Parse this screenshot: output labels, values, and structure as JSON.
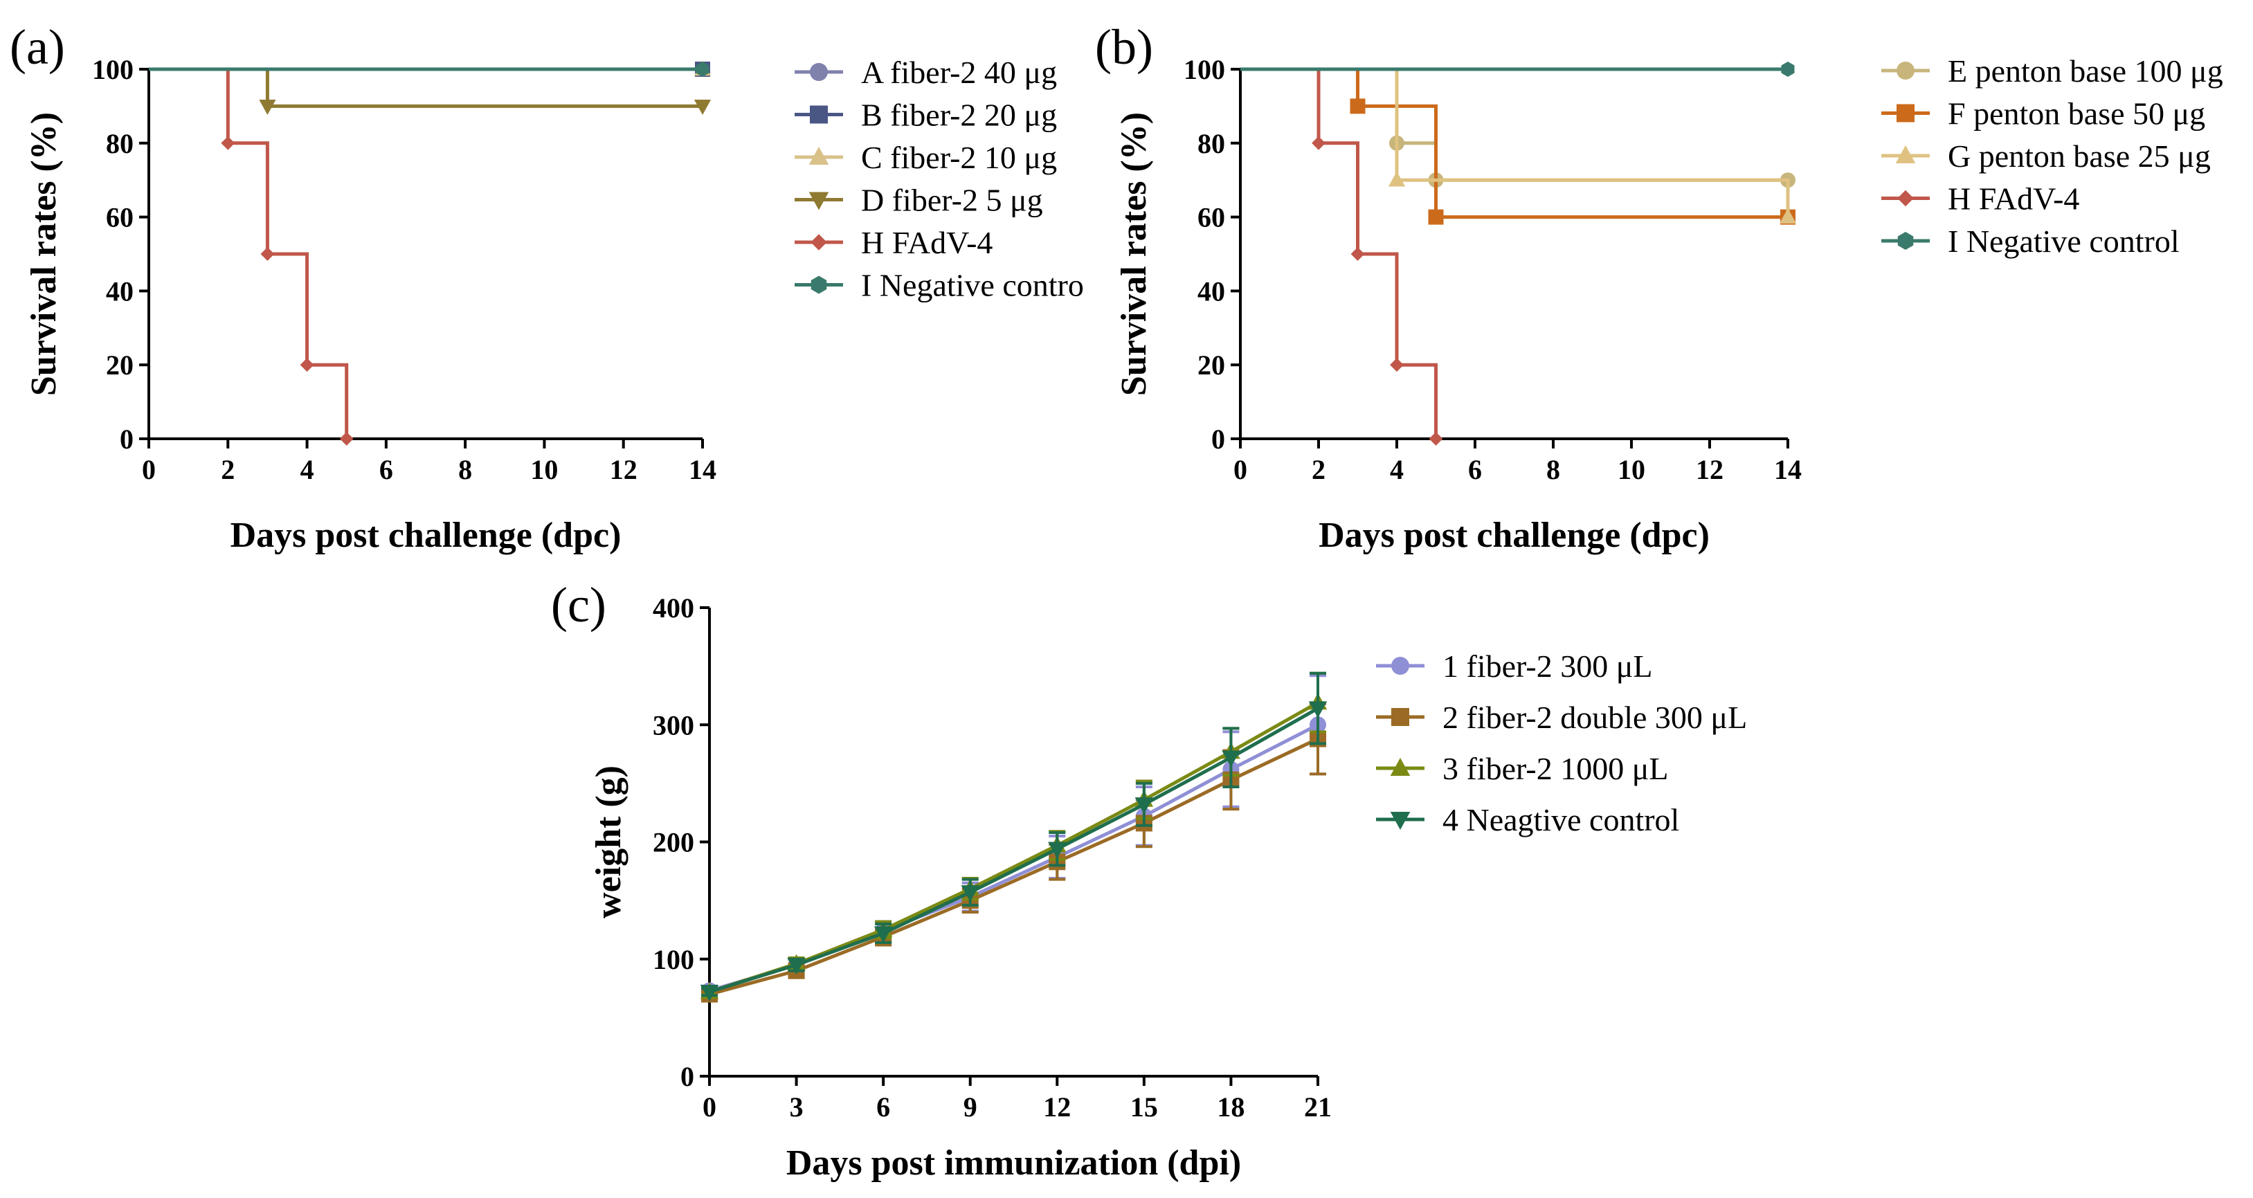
{
  "chart_data": [
    {
      "id": "a",
      "type": "line",
      "step": true,
      "panel_label": "(a)",
      "xlabel": "Days post challenge (dpc)",
      "ylabel": "Survival rates (%)",
      "xlim": [
        0,
        14
      ],
      "ylim": [
        0,
        100
      ],
      "xticks": [
        "0",
        "2",
        "4",
        "6",
        "8",
        "10",
        "12",
        "14"
      ],
      "yticks": [
        "0",
        "20",
        "40",
        "60",
        "80",
        "100"
      ],
      "legend_position": "right",
      "series": [
        {
          "name": "A fiber-2 40 μg",
          "color": "#7f82ac",
          "marker": "circle",
          "x": [
            0,
            14
          ],
          "values": [
            100,
            100
          ]
        },
        {
          "name": "B fiber-2 20 μg",
          "color": "#4a5684",
          "marker": "square",
          "x": [
            0,
            14
          ],
          "values": [
            100,
            100
          ]
        },
        {
          "name": "C fiber-2 10 μg",
          "color": "#d9c189",
          "marker": "triangle-up",
          "x": [
            0,
            14
          ],
          "values": [
            100,
            100
          ]
        },
        {
          "name": "D fiber-2 5 μg",
          "color": "#8f7a32",
          "marker": "triangle-down",
          "x": [
            0,
            3,
            14
          ],
          "values": [
            100,
            90,
            90
          ]
        },
        {
          "name": "H FAdV-4",
          "color": "#c0574a",
          "marker": "diamond",
          "x": [
            0,
            2,
            3,
            4,
            5
          ],
          "values": [
            100,
            80,
            50,
            20,
            0
          ]
        },
        {
          "name": "I Negative contro",
          "color": "#3a7a6c",
          "marker": "hexagon",
          "x": [
            0,
            14
          ],
          "values": [
            100,
            100
          ]
        }
      ]
    },
    {
      "id": "b",
      "type": "line",
      "step": true,
      "panel_label": "(b)",
      "xlabel": "Days post challenge (dpc)",
      "ylabel": "Survival rates (%)",
      "xlim": [
        0,
        14
      ],
      "ylim": [
        0,
        100
      ],
      "xticks": [
        "0",
        "2",
        "4",
        "6",
        "8",
        "10",
        "12",
        "14"
      ],
      "yticks": [
        "0",
        "20",
        "40",
        "60",
        "80",
        "100"
      ],
      "legend_position": "right",
      "series": [
        {
          "name": "E penton base 100 μg",
          "color": "#c7b57c",
          "marker": "circle",
          "x": [
            0,
            4,
            5,
            14
          ],
          "values": [
            100,
            80,
            70,
            70
          ]
        },
        {
          "name": "F penton base 50 μg",
          "color": "#cc6a1b",
          "marker": "square",
          "x": [
            0,
            3,
            5,
            14
          ],
          "values": [
            100,
            90,
            60,
            60
          ]
        },
        {
          "name": "G penton base 25 μg",
          "color": "#dfc281",
          "marker": "triangle-up",
          "x": [
            0,
            4,
            14
          ],
          "values": [
            100,
            70,
            60
          ]
        },
        {
          "name": "H FAdV-4",
          "color": "#c0574a",
          "marker": "diamond",
          "x": [
            0,
            2,
            3,
            4,
            5
          ],
          "values": [
            100,
            80,
            50,
            20,
            0
          ]
        },
        {
          "name": "I Negative control",
          "color": "#3a7a6c",
          "marker": "hexagon",
          "x": [
            0,
            14
          ],
          "values": [
            100,
            100
          ]
        }
      ]
    },
    {
      "id": "c",
      "type": "line",
      "step": false,
      "panel_label": "(c)",
      "xlabel": "Days post immunization (dpi)",
      "ylabel": "weight (g)",
      "xlim": [
        0,
        21
      ],
      "ylim": [
        0,
        400
      ],
      "xticks": [
        "0",
        "3",
        "6",
        "9",
        "12",
        "15",
        "18",
        "21"
      ],
      "yticks": [
        "0",
        "100",
        "200",
        "300",
        "400"
      ],
      "legend_position": "right",
      "series": [
        {
          "name": "1  fiber-2 300 μL",
          "color": "#8f8fd6",
          "marker": "circle",
          "x": [
            0,
            3,
            6,
            9,
            12,
            15,
            18,
            21
          ],
          "values": [
            73,
            95,
            124,
            153,
            187,
            222,
            262,
            300
          ],
          "err": [
            4,
            5,
            8,
            12,
            18,
            25,
            32,
            42
          ]
        },
        {
          "name": "2  fiber-2  double 300 μL",
          "color": "#9b6b25",
          "marker": "square",
          "x": [
            0,
            3,
            6,
            9,
            12,
            15,
            18,
            21
          ],
          "values": [
            70,
            90,
            119,
            150,
            183,
            216,
            253,
            288
          ],
          "err": [
            3,
            5,
            7,
            10,
            15,
            20,
            25,
            30
          ]
        },
        {
          "name": "3  fiber-2 1000 μL",
          "color": "#7b8a14",
          "marker": "triangle-up",
          "x": [
            0,
            3,
            6,
            9,
            12,
            15,
            18,
            21
          ],
          "values": [
            72,
            96,
            125,
            160,
            197,
            236,
            277,
            319
          ],
          "err": [
            3,
            5,
            7,
            9,
            12,
            16,
            20,
            25
          ]
        },
        {
          "name": "4  Neagtive control",
          "color": "#1f6e4e",
          "marker": "triangle-down",
          "x": [
            0,
            3,
            6,
            9,
            12,
            15,
            18,
            21
          ],
          "values": [
            72,
            95,
            122,
            157,
            194,
            232,
            272,
            314
          ],
          "err": [
            3,
            5,
            8,
            11,
            14,
            18,
            25,
            30
          ]
        }
      ]
    }
  ]
}
